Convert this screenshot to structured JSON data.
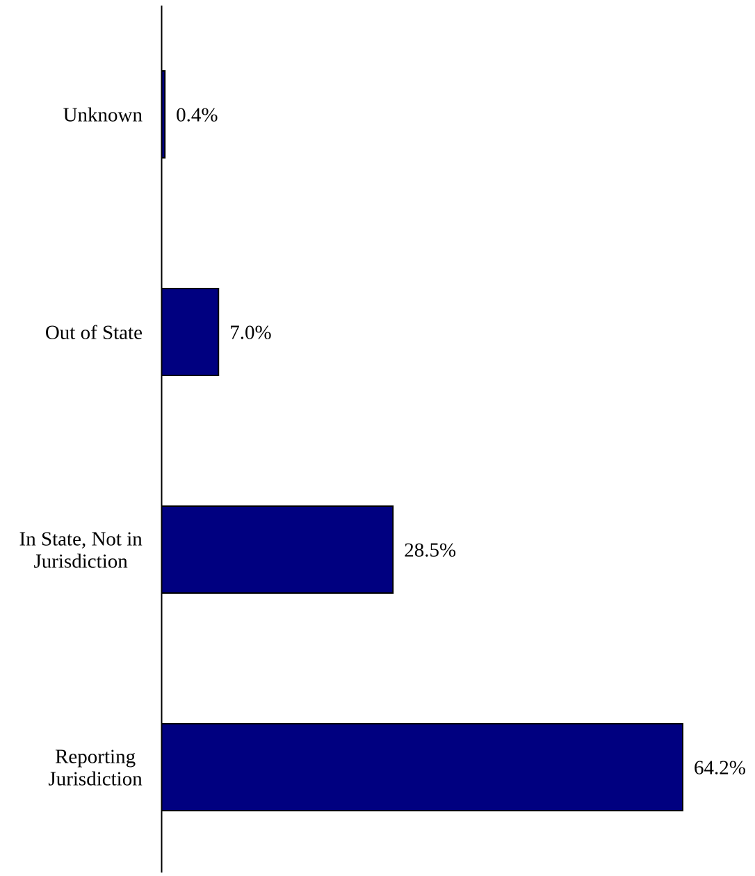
{
  "chart_data": {
    "type": "bar",
    "orientation": "horizontal",
    "categories": [
      [
        "Unknown"
      ],
      [
        "Out of State"
      ],
      [
        "In State, Not in",
        "Jurisdiction"
      ],
      [
        "Reporting",
        "Jurisdiction"
      ]
    ],
    "values": [
      0.4,
      7.0,
      28.5,
      64.2
    ],
    "value_labels": [
      "0.4%",
      "7.0%",
      "28.5%",
      "64.2%"
    ],
    "unit": "%",
    "xlim": [
      0,
      64.2
    ],
    "title": "",
    "xlabel": "",
    "ylabel": "",
    "grid": false,
    "legend": "none",
    "bar_color": "#000080",
    "bar_edge_color": "#000000"
  }
}
